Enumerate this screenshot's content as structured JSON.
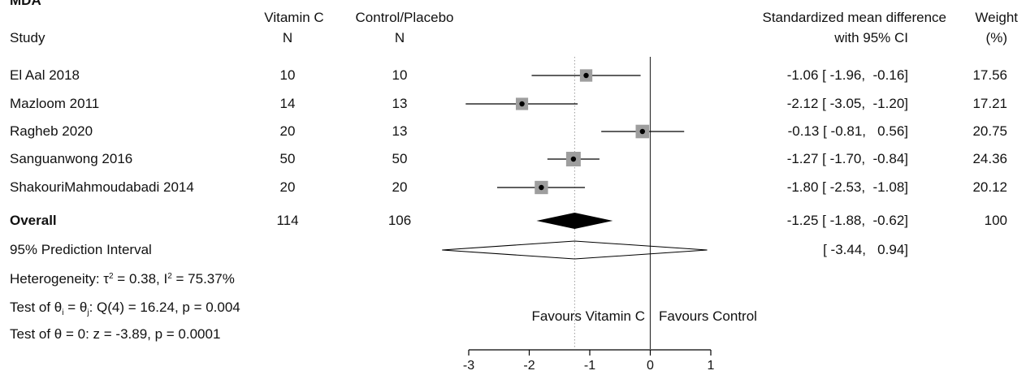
{
  "panel_title": "MDA",
  "headers": {
    "study": "Study",
    "group1_name": "Vitamin C",
    "group2_name": "Control/Placebo",
    "n1": "N",
    "n2": "N",
    "effect_line1": "Standardized mean difference",
    "effect_line2": "with 95% CI",
    "weight_line1": "Weight",
    "weight_line2": "(%)"
  },
  "chart_data": {
    "type": "forest",
    "xlim": [
      -3,
      1
    ],
    "xticks": [
      -3,
      -2,
      -1,
      0,
      1
    ],
    "tick_labels": [
      "-3",
      "-2",
      "-1",
      "0",
      "1"
    ],
    "null_line": 0,
    "overall_reference_line": -1.25,
    "studies": [
      {
        "study": "El Aal 2018",
        "n1": "10",
        "n2": "10",
        "smd": -1.06,
        "lo": -1.96,
        "hi": -0.16,
        "ci_text": "-1.06 [ -1.96,  -0.16]",
        "weight": 17.56,
        "weight_text": "17.56"
      },
      {
        "study": "Mazloom 2011",
        "n1": "14",
        "n2": "13",
        "smd": -2.12,
        "lo": -3.05,
        "hi": -1.2,
        "ci_text": "-2.12 [ -3.05,  -1.20]",
        "weight": 17.21,
        "weight_text": "17.21"
      },
      {
        "study": "Ragheb 2020",
        "n1": "20",
        "n2": "13",
        "smd": -0.13,
        "lo": -0.81,
        "hi": 0.56,
        "ci_text": "-0.13 [ -0.81,   0.56]",
        "weight": 20.75,
        "weight_text": "20.75"
      },
      {
        "study": "Sanguanwong 2016",
        "n1": "50",
        "n2": "50",
        "smd": -1.27,
        "lo": -1.7,
        "hi": -0.84,
        "ci_text": "-1.27 [ -1.70,  -0.84]",
        "weight": 24.36,
        "weight_text": "24.36"
      },
      {
        "study": "ShakouriMahmoudabadi 2014",
        "n1": "20",
        "n2": "20",
        "smd": -1.8,
        "lo": -2.53,
        "hi": -1.08,
        "ci_text": "-1.80 [ -2.53,  -1.08]",
        "weight": 20.12,
        "weight_text": "20.12"
      }
    ],
    "overall": {
      "label": "Overall",
      "n1": "114",
      "n2": "106",
      "smd": -1.25,
      "lo": -1.88,
      "hi": -0.62,
      "ci_text": "-1.25 [ -1.88,  -0.62]",
      "weight_text": "100"
    },
    "prediction_interval": {
      "label": "95% Prediction Interval",
      "lo": -3.44,
      "hi": 0.94,
      "ci_text": "[ -3.44,   0.94]"
    },
    "favours_left": "Favours Vitamin C",
    "favours_right": "Favours Control"
  },
  "stats": {
    "het_prefix": "Heterogeneity: τ",
    "het_tau_sup": "2",
    "het_mid": " = 0.38, I",
    "het_i_sup": "2",
    "het_suffix": " = 75.37%",
    "q_prefix": "Test of θ",
    "q_sub_i": "i",
    "q_eq": " = θ",
    "q_sub_j": "j",
    "q_suffix": ": Q(4) = 16.24, p = 0.004",
    "z_test": "Test of θ = 0: z = -3.89, p = 0.0001"
  }
}
